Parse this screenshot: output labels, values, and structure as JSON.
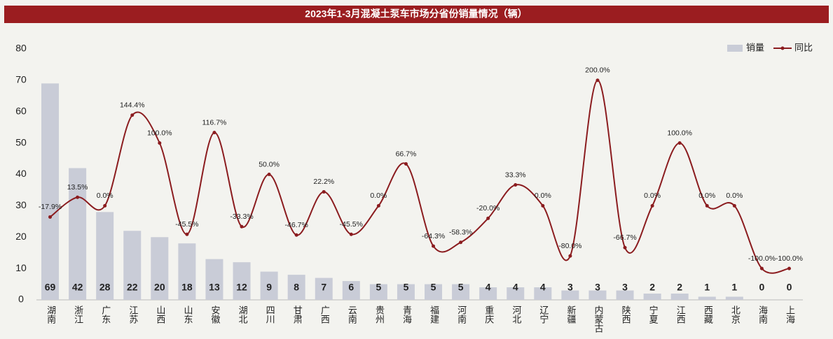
{
  "chart_data": {
    "type": "bar-line",
    "title": "2023年1-3月混凝土泵车市场分省份销量情况（辆）",
    "categories": [
      "湖南",
      "浙江",
      "广东",
      "江苏",
      "山西",
      "山东",
      "安徽",
      "湖北",
      "四川",
      "甘肃",
      "广西",
      "云南",
      "贵州",
      "青海",
      "福建",
      "河南",
      "重庆",
      "河北",
      "辽宁",
      "新疆",
      "内蒙古",
      "陕西",
      "宁夏",
      "江西",
      "西藏",
      "北京",
      "海南",
      "上海"
    ],
    "series": [
      {
        "name": "销量",
        "color": "#c9ccd7",
        "values": [
          69,
          42,
          28,
          22,
          20,
          18,
          13,
          12,
          9,
          8,
          7,
          6,
          5,
          5,
          5,
          5,
          4,
          4,
          4,
          3,
          3,
          3,
          2,
          2,
          1,
          1,
          0,
          0
        ]
      },
      {
        "name": "同比",
        "color": "#8b1c1f",
        "axis": "y2",
        "values": [
          -17.9,
          13.5,
          0,
          144.4,
          100,
          -45.5,
          116.7,
          -33.3,
          50,
          -46.7,
          22.2,
          -45.5,
          0,
          66.7,
          -64.3,
          -58.3,
          -20,
          33.3,
          0,
          -80,
          200,
          -66.7,
          0,
          100,
          0,
          0,
          -100,
          -100
        ],
        "value_labels": [
          "-17.9%",
          "13.5%",
          "0.0%",
          "144.4%",
          "100.0%",
          "-45.5%",
          "116.7%",
          "-33.3%",
          "50.0%",
          "-46.7%",
          "22.2%",
          "-45.5%",
          "0.0%",
          "66.7%",
          "-64.3%",
          "-58.3%",
          "-20.0%",
          "33.3%",
          "0.0%",
          "-80.0%",
          "200.0%",
          "-66.7%",
          "0.0%",
          "100.0%",
          "0.0%",
          "0.0%",
          "-100.0%",
          "-100.0%"
        ]
      }
    ],
    "ylim": [
      0,
      80
    ],
    "yticks": [
      0,
      10,
      20,
      30,
      40,
      50,
      60,
      70,
      80
    ],
    "y2lim": [
      -150,
      250
    ],
    "legend": "top-right",
    "grid": false
  }
}
